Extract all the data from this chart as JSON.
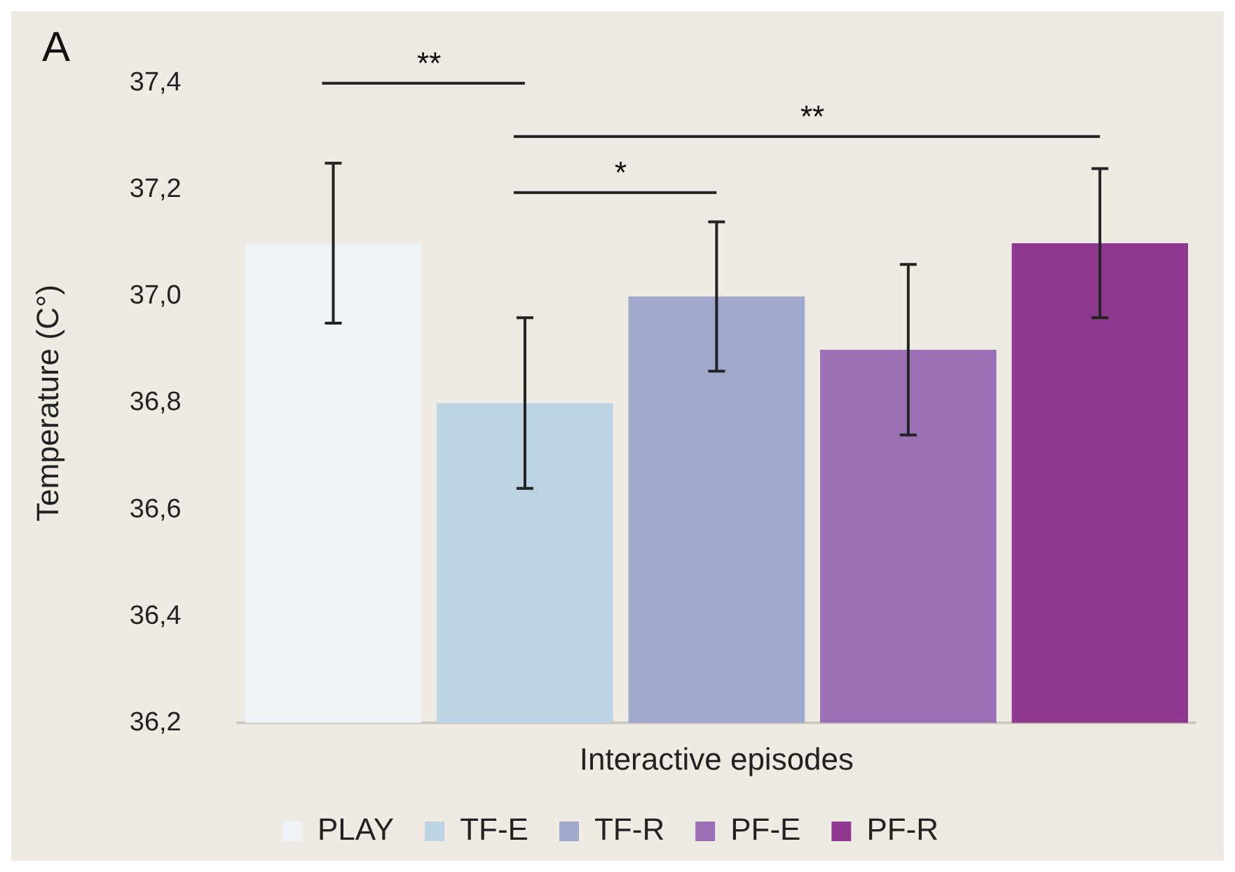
{
  "chart_data": {
    "type": "bar",
    "xlabel": "Interactive episodes",
    "ylabel": "Temperature (C°)",
    "categories": [
      null
    ],
    "series": [
      {
        "name": "PLAY",
        "color": "#edf3f6",
        "values": [
          37.1
        ],
        "errors": [
          0.15
        ]
      },
      {
        "name": "TF-E",
        "color": "#bcd3e4",
        "values": [
          36.8
        ],
        "errors": [
          0.16
        ]
      },
      {
        "name": "TF-R",
        "color": "#a0a8cc",
        "values": [
          37.0
        ],
        "errors": [
          0.14
        ]
      },
      {
        "name": "PF-E",
        "color": "#9b70b5",
        "values": [
          36.9
        ],
        "errors": [
          0.16
        ]
      },
      {
        "name": "PF-R",
        "color": "#8e3890",
        "values": [
          37.1
        ],
        "errors": [
          0.14
        ]
      }
    ],
    "ylim": [
      36.2,
      37.4
    ],
    "yticks": [
      {
        "value": 36.2,
        "label": "36,2"
      },
      {
        "value": 36.4,
        "label": "36,4"
      },
      {
        "value": 36.6,
        "label": "36,6"
      },
      {
        "value": 36.8,
        "label": "36,8"
      },
      {
        "value": 37.0,
        "label": "37,0"
      },
      {
        "value": 37.2,
        "label": "37,2"
      },
      {
        "value": 37.4,
        "label": "37,4"
      }
    ],
    "annotations": [
      "A",
      "**",
      "*",
      "**"
    ],
    "grid": false,
    "legend": "bottom",
    "tick_labels": "y"
  }
}
